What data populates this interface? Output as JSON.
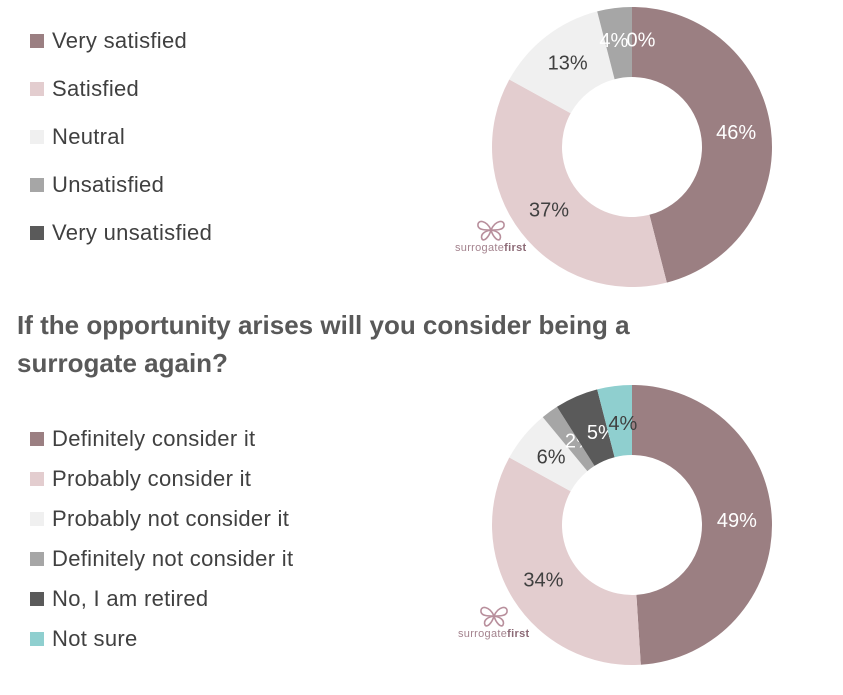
{
  "question_2": "If the opportunity arises will you consider being a surrogate again?",
  "logo": {
    "text_light": "surrogate",
    "text_bold": "first"
  },
  "chart_data": [
    {
      "type": "pie",
      "donut": true,
      "categories": [
        "Very satisfied",
        "Satisfied",
        "Neutral",
        "Unsatisfied",
        "Very unsatisfied"
      ],
      "values": [
        46,
        37,
        13,
        4,
        0
      ],
      "data_labels": [
        "46%",
        "37%",
        "13%",
        "4%",
        "0%"
      ],
      "colors": [
        "#9b7f82",
        "#e3cdcf",
        "#f0f0f0",
        "#a6a6a6",
        "#5a5a5a"
      ],
      "label_colors": [
        "#ffffff",
        "#404040",
        "#404040",
        "#ffffff",
        "#ffffff"
      ],
      "legend_position": "left"
    },
    {
      "type": "pie",
      "donut": true,
      "title": "If the opportunity arises will you consider being a surrogate again?",
      "categories": [
        "Definitely consider it",
        "Probably consider it",
        "Probably not consider it",
        "Definitely not consider it",
        "No, I am retired",
        "Not sure"
      ],
      "values": [
        49,
        34,
        6,
        2,
        5,
        4
      ],
      "data_labels": [
        "49%",
        "34%",
        "6%",
        "2%",
        "5%",
        "4%"
      ],
      "colors": [
        "#9b7f82",
        "#e3cdcf",
        "#f0f0f0",
        "#a6a6a6",
        "#5a5a5a",
        "#8fcfcf"
      ],
      "label_colors": [
        "#ffffff",
        "#404040",
        "#404040",
        "#ffffff",
        "#ffffff",
        "#404040"
      ],
      "legend_position": "left"
    }
  ]
}
